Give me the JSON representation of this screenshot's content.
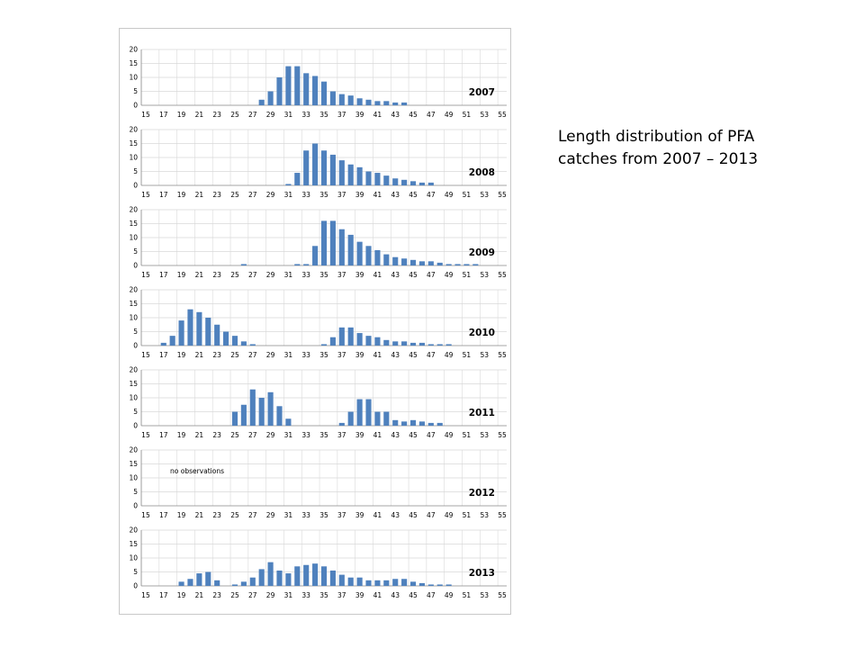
{
  "caption": {
    "line1": "Length distribution of PFA",
    "line2": "catches from 2007 – 2013"
  },
  "colors": {
    "bar": "#4f81bd",
    "grid": "#d9d9d9",
    "axis": "#868686"
  },
  "chart_data": [
    {
      "type": "bar",
      "title": "2007",
      "ylim": [
        0,
        20
      ],
      "yticks": [
        0,
        5,
        10,
        15,
        20
      ],
      "xtick_labels": [
        "15",
        "17",
        "19",
        "21",
        "23",
        "25",
        "27",
        "29",
        "31",
        "33",
        "35",
        "37",
        "39",
        "41",
        "43",
        "45",
        "47",
        "49",
        "51",
        "53",
        "55"
      ],
      "categories": [
        15,
        16,
        17,
        18,
        19,
        20,
        21,
        22,
        23,
        24,
        25,
        26,
        27,
        28,
        29,
        30,
        31,
        32,
        33,
        34,
        35,
        36,
        37,
        38,
        39,
        40,
        41,
        42,
        43,
        44,
        45,
        46,
        47,
        48,
        49,
        50,
        51,
        52,
        53,
        54,
        55
      ],
      "values": [
        0,
        0,
        0,
        0,
        0,
        0,
        0,
        0,
        0,
        0,
        0,
        0,
        0,
        2,
        5,
        10,
        14,
        14,
        11.5,
        10.5,
        8.5,
        5,
        4,
        3.5,
        2.5,
        2,
        1.5,
        1.5,
        1,
        1,
        0,
        0,
        0,
        0,
        0,
        0,
        0,
        0,
        0,
        0,
        0
      ],
      "note": ""
    },
    {
      "type": "bar",
      "title": "2008",
      "ylim": [
        0,
        20
      ],
      "yticks": [
        0,
        5,
        10,
        15,
        20
      ],
      "xtick_labels": [
        "15",
        "17",
        "19",
        "21",
        "23",
        "25",
        "27",
        "29",
        "31",
        "33",
        "35",
        "37",
        "39",
        "41",
        "43",
        "45",
        "47",
        "49",
        "51",
        "53",
        "55"
      ],
      "categories": [
        15,
        16,
        17,
        18,
        19,
        20,
        21,
        22,
        23,
        24,
        25,
        26,
        27,
        28,
        29,
        30,
        31,
        32,
        33,
        34,
        35,
        36,
        37,
        38,
        39,
        40,
        41,
        42,
        43,
        44,
        45,
        46,
        47,
        48,
        49,
        50,
        51,
        52,
        53,
        54,
        55
      ],
      "values": [
        0,
        0,
        0,
        0,
        0,
        0,
        0,
        0,
        0,
        0,
        0,
        0,
        0,
        0,
        0,
        0,
        0.5,
        4.5,
        12.5,
        15,
        12.5,
        11,
        9,
        7.5,
        6.5,
        5,
        4.5,
        3.5,
        2.5,
        2,
        1.5,
        1,
        1,
        0,
        0,
        0,
        0,
        0,
        0,
        0,
        0
      ],
      "note": ""
    },
    {
      "type": "bar",
      "title": "2009",
      "ylim": [
        0,
        20
      ],
      "yticks": [
        0,
        5,
        10,
        15,
        20
      ],
      "xtick_labels": [
        "15",
        "17",
        "19",
        "21",
        "23",
        "25",
        "27",
        "29",
        "31",
        "33",
        "35",
        "37",
        "39",
        "41",
        "43",
        "45",
        "47",
        "49",
        "51",
        "53",
        "55"
      ],
      "categories": [
        15,
        16,
        17,
        18,
        19,
        20,
        21,
        22,
        23,
        24,
        25,
        26,
        27,
        28,
        29,
        30,
        31,
        32,
        33,
        34,
        35,
        36,
        37,
        38,
        39,
        40,
        41,
        42,
        43,
        44,
        45,
        46,
        47,
        48,
        49,
        50,
        51,
        52,
        53,
        54,
        55
      ],
      "values": [
        0,
        0,
        0,
        0,
        0,
        0,
        0,
        0,
        0,
        0,
        0,
        0.5,
        0,
        0,
        0,
        0,
        0,
        0.5,
        0.5,
        7,
        16,
        16,
        13,
        11,
        8.5,
        7,
        5.5,
        4,
        3,
        2.5,
        2,
        1.5,
        1.5,
        1,
        0.5,
        0.5,
        0.5,
        0.5,
        0,
        0,
        0
      ],
      "note": ""
    },
    {
      "type": "bar",
      "title": "2010",
      "ylim": [
        0,
        20
      ],
      "yticks": [
        0,
        5,
        10,
        15,
        20
      ],
      "xtick_labels": [
        "15",
        "17",
        "19",
        "21",
        "23",
        "25",
        "27",
        "29",
        "31",
        "33",
        "35",
        "37",
        "39",
        "41",
        "43",
        "45",
        "47",
        "49",
        "51",
        "53",
        "55"
      ],
      "categories": [
        15,
        16,
        17,
        18,
        19,
        20,
        21,
        22,
        23,
        24,
        25,
        26,
        27,
        28,
        29,
        30,
        31,
        32,
        33,
        34,
        35,
        36,
        37,
        38,
        39,
        40,
        41,
        42,
        43,
        44,
        45,
        46,
        47,
        48,
        49,
        50,
        51,
        52,
        53,
        54,
        55
      ],
      "values": [
        0,
        0,
        1,
        3.5,
        9,
        13,
        12,
        10,
        7.5,
        5,
        3.5,
        1.5,
        0.5,
        0,
        0,
        0,
        0,
        0,
        0,
        0,
        0.5,
        3,
        6.5,
        6.5,
        4.5,
        3.5,
        3,
        2,
        1.5,
        1.5,
        1,
        1,
        0.5,
        0.5,
        0.5,
        0,
        0,
        0,
        0,
        0,
        0
      ],
      "note": ""
    },
    {
      "type": "bar",
      "title": "2011",
      "ylim": [
        0,
        20
      ],
      "yticks": [
        0,
        5,
        10,
        15,
        20
      ],
      "xtick_labels": [
        "15",
        "17",
        "19",
        "21",
        "23",
        "25",
        "27",
        "29",
        "31",
        "33",
        "35",
        "37",
        "39",
        "41",
        "43",
        "45",
        "47",
        "49",
        "51",
        "53",
        "55"
      ],
      "categories": [
        15,
        16,
        17,
        18,
        19,
        20,
        21,
        22,
        23,
        24,
        25,
        26,
        27,
        28,
        29,
        30,
        31,
        32,
        33,
        34,
        35,
        36,
        37,
        38,
        39,
        40,
        41,
        42,
        43,
        44,
        45,
        46,
        47,
        48,
        49,
        50,
        51,
        52,
        53,
        54,
        55
      ],
      "values": [
        0,
        0,
        0,
        0,
        0,
        0,
        0,
        0,
        0,
        0,
        5,
        7.5,
        13,
        10,
        12,
        7,
        2.5,
        0,
        0,
        0,
        0,
        0,
        1,
        5,
        9.5,
        9.5,
        5,
        5,
        2,
        1.5,
        2,
        1.5,
        1,
        1,
        0,
        0,
        0,
        0,
        0,
        0,
        0
      ],
      "note": ""
    },
    {
      "type": "bar",
      "title": "2012",
      "ylim": [
        0,
        20
      ],
      "yticks": [
        0,
        5,
        10,
        15,
        20
      ],
      "xtick_labels": [
        "15",
        "17",
        "19",
        "21",
        "23",
        "25",
        "27",
        "29",
        "31",
        "33",
        "35",
        "37",
        "39",
        "41",
        "43",
        "45",
        "47",
        "49",
        "51",
        "53",
        "55"
      ],
      "categories": [
        15,
        16,
        17,
        18,
        19,
        20,
        21,
        22,
        23,
        24,
        25,
        26,
        27,
        28,
        29,
        30,
        31,
        32,
        33,
        34,
        35,
        36,
        37,
        38,
        39,
        40,
        41,
        42,
        43,
        44,
        45,
        46,
        47,
        48,
        49,
        50,
        51,
        52,
        53,
        54,
        55
      ],
      "values": [
        0,
        0,
        0,
        0,
        0,
        0,
        0,
        0,
        0,
        0,
        0,
        0,
        0,
        0,
        0,
        0,
        0,
        0,
        0,
        0,
        0,
        0,
        0,
        0,
        0,
        0,
        0,
        0,
        0,
        0,
        0,
        0,
        0,
        0,
        0,
        0,
        0,
        0,
        0,
        0,
        0
      ],
      "note": "no observations"
    },
    {
      "type": "bar",
      "title": "2013",
      "ylim": [
        0,
        20
      ],
      "yticks": [
        0,
        5,
        10,
        15,
        20
      ],
      "xtick_labels": [
        "15",
        "17",
        "19",
        "21",
        "23",
        "25",
        "27",
        "29",
        "31",
        "33",
        "35",
        "37",
        "39",
        "41",
        "43",
        "45",
        "47",
        "49",
        "51",
        "53",
        "55"
      ],
      "categories": [
        15,
        16,
        17,
        18,
        19,
        20,
        21,
        22,
        23,
        24,
        25,
        26,
        27,
        28,
        29,
        30,
        31,
        32,
        33,
        34,
        35,
        36,
        37,
        38,
        39,
        40,
        41,
        42,
        43,
        44,
        45,
        46,
        47,
        48,
        49,
        50,
        51,
        52,
        53,
        54,
        55
      ],
      "values": [
        0,
        0,
        0,
        0,
        1.5,
        2.5,
        4.5,
        5,
        2,
        0,
        0.5,
        1.5,
        3,
        6,
        8.5,
        5.5,
        4.5,
        7,
        7.5,
        8,
        7,
        5.5,
        4,
        3,
        3,
        2,
        2,
        2,
        2.5,
        2.5,
        1.5,
        1,
        0.5,
        0.5,
        0.5,
        0,
        0,
        0,
        0,
        0,
        0
      ],
      "note": ""
    }
  ]
}
